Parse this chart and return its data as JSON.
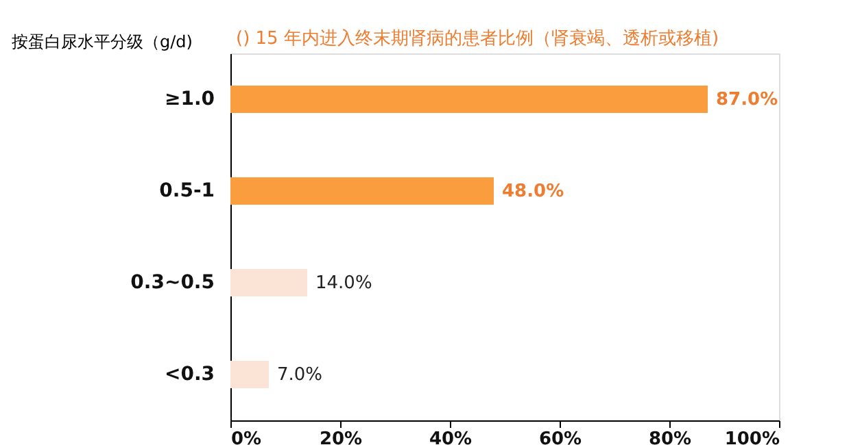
{
  "chart_data": {
    "type": "bar",
    "orientation": "horizontal",
    "title": "() 15 年内进入终末期肾病的患者比例（肾衰竭、透析或移植)",
    "ylabel": "按蛋白尿水平分级（g/d)",
    "categories": [
      "≥1.0",
      "0.5-1",
      "0.3~0.5",
      "<0.3"
    ],
    "values": [
      87,
      48,
      14,
      7
    ],
    "colors": [
      "#f99d3e",
      "#f99d3e",
      "#fbe3d6",
      "#fbe3d6"
    ],
    "value_labels": [
      "87.0%",
      "48.0%",
      "14.0%",
      "7.0%"
    ],
    "xlim": [
      0,
      100
    ],
    "xticks": [
      {
        "value": 0,
        "label": "0%"
      },
      {
        "value": 20,
        "label": "20%"
      },
      {
        "value": 40,
        "label": "40%"
      },
      {
        "value": 60,
        "label": "60%"
      },
      {
        "value": 80,
        "label": "80%"
      },
      {
        "value": 100,
        "label": "100%"
      }
    ],
    "grid": false
  }
}
